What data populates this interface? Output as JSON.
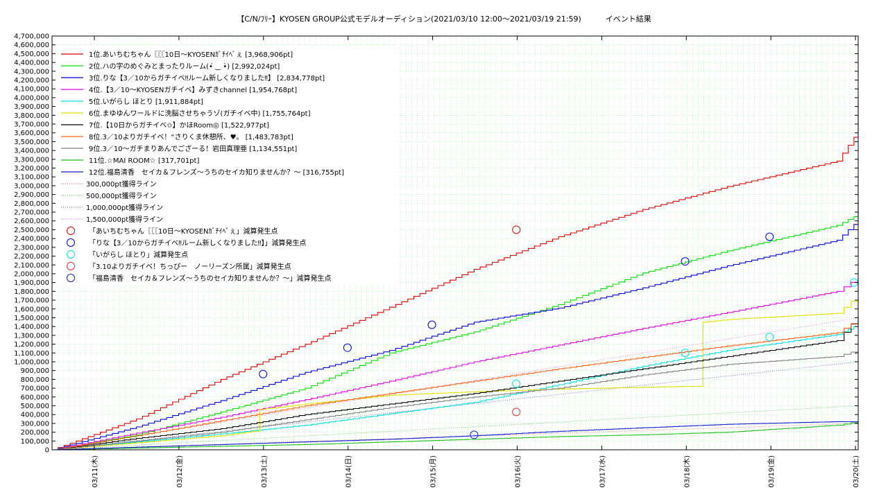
{
  "chart_data": {
    "type": "line",
    "title": "【C/N/ﾌﾘｰ】KYOSEN GROUP公式モデルオーディション(2021/03/10 12:00～2021/03/19 21:59)",
    "title_suffix": "イベント結果",
    "x_tick_labels": [
      "03/11(木)",
      "03/12(金)",
      "03/13(土)",
      "03/14(日)",
      "03/15(月)",
      "03/16(火)",
      "03/17(水)",
      "03/18(木)",
      "03/19(金)",
      "03/20(土)"
    ],
    "x_day_range": [
      0,
      9.55
    ],
    "ylim": [
      0,
      4700000
    ],
    "y_tick_labels": [
      "0",
      "100,000",
      "200,000",
      "300,000",
      "400,000",
      "500,000",
      "600,000",
      "700,000",
      "800,000",
      "900,000",
      "1,000,000",
      "1,100,000",
      "1,200,000",
      "1,300,000",
      "1,400,000",
      "1,500,000",
      "1,600,000",
      "1,700,000",
      "1,800,000",
      "1,900,000",
      "2,000,000",
      "2,100,000",
      "2,200,000",
      "2,300,000",
      "2,400,000",
      "2,500,000",
      "2,600,000",
      "2,700,000",
      "2,800,000",
      "2,900,000",
      "3,000,000",
      "3,100,000",
      "3,200,000",
      "3,300,000",
      "3,400,000",
      "3,500,000",
      "3,600,000",
      "3,700,000",
      "3,800,000",
      "3,900,000",
      "4,000,000",
      "4,100,000",
      "4,200,000",
      "4,300,000",
      "4,400,000",
      "4,500,000",
      "4,600,000",
      "4,700,000"
    ],
    "grid": true,
    "legend_position": "top-left",
    "series": [
      {
        "name": "1位.あいちむちゃん〖〖〖10日〜KYOSENｶﾞﾁｲﾍﾞぇ [3,968,906pt]",
        "color": "#e00000",
        "x": [
          0,
          1,
          2,
          3,
          4,
          5,
          6,
          7,
          8,
          9.3,
          9.5,
          9.55
        ],
        "y": [
          0,
          350000,
          800000,
          1200000,
          1620000,
          2050000,
          2420000,
          2730000,
          2990000,
          3280000,
          3550000,
          3968906
        ]
      },
      {
        "name": "2位.ハの字のめぐみとまったりルーム(•́ ‿ •̀) [2,992,024pt]",
        "color": "#00e000",
        "x": [
          0,
          1,
          2,
          3,
          4,
          5,
          6,
          7,
          8,
          9.3,
          9.5,
          9.55
        ],
        "y": [
          0,
          170000,
          430000,
          700000,
          1100000,
          1340000,
          1650000,
          2010000,
          2260000,
          2550000,
          2650000,
          2992024
        ]
      },
      {
        "name": "3位.りな【3／10からガチイベ‼ルーム新しくなりました‼】 [2,834,778pt]",
        "color": "#0000e0",
        "x": [
          0,
          1,
          2,
          3,
          4,
          5,
          6,
          7,
          8,
          9.3,
          9.5,
          9.55
        ],
        "y": [
          0,
          260000,
          560000,
          880000,
          1130000,
          1450000,
          1610000,
          1840000,
          2090000,
          2380000,
          2560000,
          2834778
        ]
      },
      {
        "name": "4位.【3／10〜KYOSENガチイベ】みずきchannel [1,954,768pt]",
        "color": "#e000e0",
        "x": [
          0,
          1,
          2,
          3,
          4,
          5,
          6,
          7,
          8,
          9.3,
          9.55
        ],
        "y": [
          0,
          190000,
          370000,
          570000,
          780000,
          1000000,
          1190000,
          1380000,
          1560000,
          1800000,
          1954768
        ]
      },
      {
        "name": "5位.いがらし ほとり [1,911,884pt]",
        "color": "#00e0e0",
        "x": [
          0,
          1,
          2,
          3,
          4,
          5,
          6,
          7,
          8,
          9.3,
          9.5,
          9.55
        ],
        "y": [
          0,
          90000,
          180000,
          280000,
          410000,
          540000,
          740000,
          950000,
          1130000,
          1310000,
          1400000,
          1911884
        ]
      },
      {
        "name": "6位.まゆゆんワールドに洗脳させちゃうゾ(ガチイベ中) [1,755,764pt]",
        "color": "#e0e000",
        "x": [
          0,
          1,
          2,
          2.45,
          2.46,
          3,
          4,
          5,
          6,
          6.5,
          7.5,
          7.7,
          7.71,
          8,
          9.3,
          9.55
        ],
        "y": [
          0,
          80000,
          160000,
          220000,
          460000,
          520000,
          620000,
          660000,
          690000,
          700000,
          720000,
          720000,
          1450000,
          1480000,
          1550000,
          1755764
        ]
      },
      {
        "name": "7位.【10日からガチイベ✩】かほRoom◎ [1,522,977pt]",
        "color": "#000000",
        "x": [
          0,
          1,
          2,
          3,
          4,
          5,
          6,
          7,
          8,
          9.3,
          9.55
        ],
        "y": [
          0,
          130000,
          240000,
          400000,
          520000,
          640000,
          780000,
          920000,
          1060000,
          1240000,
          1522977
        ]
      },
      {
        "name": "8位.3／10よりガチイベ！“さりくま休憩所、♥︎。 [1,483,783pt]",
        "color": "#ff6010",
        "x": [
          0,
          1,
          2,
          3,
          4,
          5,
          6,
          7,
          8,
          9.3,
          9.55
        ],
        "y": [
          0,
          160000,
          330000,
          500000,
          640000,
          780000,
          920000,
          1050000,
          1180000,
          1330000,
          1483783
        ]
      },
      {
        "name": "9位.3／10〜ガチまりあんでござーる！岩田真理亜 [1,134,551pt]",
        "color": "#808080",
        "x": [
          0,
          1,
          2,
          3,
          4,
          5,
          6,
          7,
          8,
          9.3,
          9.55
        ],
        "y": [
          0,
          100000,
          200000,
          340000,
          480000,
          600000,
          700000,
          850000,
          970000,
          1060000,
          1134551
        ]
      },
      {
        "name": "11位.☆MAI ROOM☆ [317,701pt]",
        "color": "#20c020",
        "x": [
          0,
          1,
          2,
          3,
          4,
          5,
          6,
          7,
          8,
          9.3,
          9.55
        ],
        "y": [
          0,
          20000,
          40000,
          60000,
          90000,
          120000,
          150000,
          170000,
          200000,
          280000,
          317701
        ]
      },
      {
        "name": "12位.福島清香　セイカ＆フレンズ〜うちのセイカ知りませんか？〜 [316,755pt]",
        "color": "#1020d0",
        "x": [
          0,
          1,
          2,
          3,
          4,
          5,
          6,
          7,
          8,
          9.3,
          9.55
        ],
        "y": [
          0,
          30000,
          60000,
          90000,
          120000,
          160000,
          210000,
          250000,
          290000,
          320000,
          316755
        ]
      }
    ],
    "reference_lines": [
      {
        "name": "300,000pt獲得ライン",
        "color": "#e05050",
        "value": 300000
      },
      {
        "name": "500,000pt獲得ライン",
        "color": "#40c040",
        "value": 500000
      },
      {
        "name": "1,000,000pt獲得ライン",
        "color": "#5050c0",
        "value": 1000000
      },
      {
        "name": "1,500,000pt獲得ライン",
        "color": "#e060e0",
        "value": 1500000
      }
    ],
    "deduction_markers": [
      {
        "name": "「あいちむちゃん〖〖〖10日〜KYOSENｶﾞﾁｲﾍﾞぇ」減算発生点",
        "color": "#e00000",
        "points": [
          [
            5.5,
            2500000
          ]
        ]
      },
      {
        "name": "「りな【3／10からガチイベ‼ルーム新しくなりました‼】」減算発生点",
        "color": "#0000e0",
        "points": [
          [
            2.5,
            860000
          ],
          [
            3.5,
            1160000
          ],
          [
            4.5,
            1420000
          ],
          [
            7.5,
            2140000
          ],
          [
            8.5,
            2420000
          ]
        ]
      },
      {
        "name": "「いがらし ほとり」減算発生点",
        "color": "#00e0e0",
        "points": [
          [
            5.5,
            750000
          ],
          [
            7.5,
            1100000
          ],
          [
            8.5,
            1280000
          ],
          [
            9.5,
            1900000
          ]
        ]
      },
      {
        "name": "「3.10よりガチイベ！ちっぴー　ノーリーズン所属」減算発生点",
        "color": "#e03030",
        "points": [
          [
            5.5,
            430000
          ]
        ]
      },
      {
        "name": "「福島清香　セイカ＆フレンズ〜うちのセイカ知りませんか？〜」減算発生点",
        "color": "#1020d0",
        "points": [
          [
            5.0,
            170000
          ]
        ]
      }
    ]
  }
}
